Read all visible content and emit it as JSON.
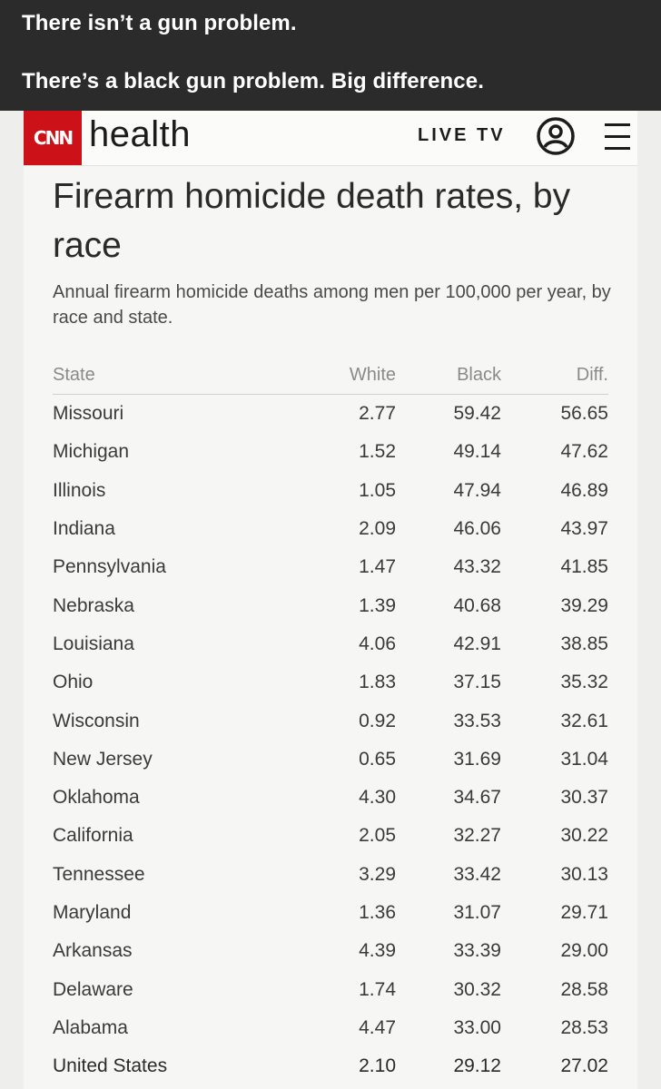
{
  "caption": {
    "line1": "There isn’t a gun problem.",
    "line2": "There’s a black gun problem. Big difference."
  },
  "header": {
    "logo_text": "CNN",
    "section": "health",
    "live_tv": "LIVE TV",
    "icons": {
      "user": "user-account-icon",
      "menu": "hamburger-menu-icon"
    }
  },
  "article": {
    "title": "Firearm homicide death rates, by race",
    "subtitle": "Annual firearm homicide deaths among men per 100,000 per year, by race and state."
  },
  "table": {
    "columns": [
      "State",
      "White",
      "Black",
      "Diff."
    ],
    "rows": [
      [
        "Missouri",
        "2.77",
        "59.42",
        "56.65"
      ],
      [
        "Michigan",
        "1.52",
        "49.14",
        "47.62"
      ],
      [
        "Illinois",
        "1.05",
        "47.94",
        "46.89"
      ],
      [
        "Indiana",
        "2.09",
        "46.06",
        "43.97"
      ],
      [
        "Pennsylvania",
        "1.47",
        "43.32",
        "41.85"
      ],
      [
        "Nebraska",
        "1.39",
        "40.68",
        "39.29"
      ],
      [
        "Louisiana",
        "4.06",
        "42.91",
        "38.85"
      ],
      [
        "Ohio",
        "1.83",
        "37.15",
        "35.32"
      ],
      [
        "Wisconsin",
        "0.92",
        "33.53",
        "32.61"
      ],
      [
        "New Jersey",
        "0.65",
        "31.69",
        "31.04"
      ],
      [
        "Oklahoma",
        "4.30",
        "34.67",
        "30.37"
      ],
      [
        "California",
        "2.05",
        "32.27",
        "30.22"
      ],
      [
        "Tennessee",
        "3.29",
        "33.42",
        "30.13"
      ],
      [
        "Maryland",
        "1.36",
        "31.07",
        "29.71"
      ],
      [
        "Arkansas",
        "4.39",
        "33.39",
        "29.00"
      ],
      [
        "Delaware",
        "1.74",
        "30.32",
        "28.58"
      ],
      [
        "Alabama",
        "4.47",
        "33.00",
        "28.53"
      ],
      [
        "United States",
        "2.10",
        "29.12",
        "27.02"
      ]
    ]
  },
  "colors": {
    "caption_bg": "#2b2b2b",
    "brand_red": "#cc1218",
    "page_bg": "#f6f6f4"
  }
}
